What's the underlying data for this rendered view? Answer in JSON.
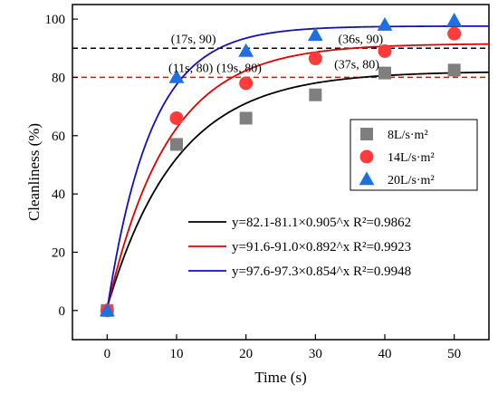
{
  "chart_data": {
    "type": "scatter",
    "xlabel": "Time (s)",
    "ylabel": "Cleanliness (%)",
    "xlim": [
      -5,
      55
    ],
    "ylim": [
      -10,
      105
    ],
    "xticks": [
      0,
      10,
      20,
      30,
      40,
      50
    ],
    "yticks": [
      0,
      20,
      40,
      60,
      80,
      100
    ],
    "x_tick_labels": [
      "0",
      "10",
      "20",
      "30",
      "40",
      "50"
    ],
    "y_tick_labels": [
      "0",
      "20",
      "40",
      "60",
      "80",
      "100"
    ],
    "x": [
      0,
      10,
      20,
      30,
      40,
      50
    ],
    "series": [
      {
        "name": "8L/s·m²",
        "marker": "square",
        "color": "#7f7f7f",
        "values": [
          0,
          57,
          66,
          74,
          81.5,
          82.5
        ]
      },
      {
        "name": "14L/s·m²",
        "marker": "circle",
        "color": "#ff3b3b",
        "values": [
          0,
          66,
          78,
          86.5,
          89,
          95
        ]
      },
      {
        "name": "20L/s·m²",
        "marker": "triangle",
        "color": "#1f6fe0",
        "values": [
          0,
          80,
          89,
          94.5,
          98,
          99.5
        ]
      }
    ],
    "fits": [
      {
        "label": "y=82.1-81.1×0.905^x R²=0.9862",
        "color": "#000000",
        "a": 82.1,
        "b": 81.1,
        "c": 0.905
      },
      {
        "label": "y=91.6-91.0×0.892^x R²=0.9923",
        "color": "#e00000",
        "a": 91.6,
        "b": 91.0,
        "c": 0.892
      },
      {
        "label": "y=97.6-97.3×0.854^x R²=0.9948",
        "color": "#1010c0",
        "a": 97.6,
        "b": 97.3,
        "c": 0.854
      }
    ],
    "reference_lines": [
      {
        "y": 90,
        "color": "#000000"
      },
      {
        "y": 80,
        "color": "#ff0000"
      }
    ],
    "annotations": [
      {
        "text": "(17s, 90)",
        "x": 17,
        "y": 90
      },
      {
        "text": "(36s, 90)",
        "x": 36,
        "y": 90
      },
      {
        "text": "(11s, 80)",
        "x": 11,
        "y": 80
      },
      {
        "text": "(19s, 80)",
        "x": 19,
        "y": 80
      },
      {
        "text": "(37s, 80)",
        "x": 37,
        "y": 80
      }
    ],
    "legend_position": "right",
    "grid": false
  }
}
